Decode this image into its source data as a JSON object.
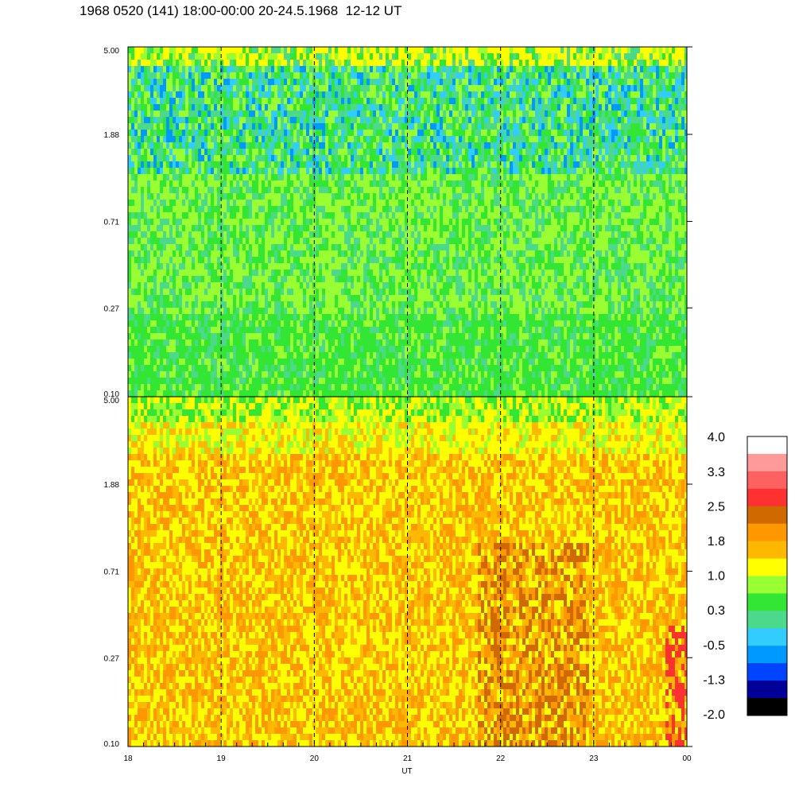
{
  "title": "1968 0520 (141) 18:00-00:00 20-24.5.1968  12-12 UT",
  "chart_data": [
    {
      "type": "heatmap",
      "panel": "top",
      "y_ticks": [
        "5.00",
        "1.88",
        "0.71",
        "0.27",
        "0.10"
      ],
      "y_tick_values": [
        5.0,
        1.88,
        0.71,
        0.27,
        0.1
      ],
      "y_scale": "log",
      "ylim": [
        0.1,
        5.0
      ],
      "x_range_hours": [
        18,
        24
      ],
      "dashed_hour_lines": [
        19,
        20,
        21,
        22,
        23
      ],
      "dominant_levels": "green / cyan / yellow-green (approx -0.5 to 1.0); blue streaks near 1.88 band"
    },
    {
      "type": "heatmap",
      "panel": "bottom",
      "y_ticks": [
        "5.00",
        "1.88",
        "0.71",
        "0.27",
        "0.10"
      ],
      "y_tick_values": [
        5.0,
        1.88,
        0.71,
        0.27,
        0.1
      ],
      "y_scale": "log",
      "ylim": [
        0.1,
        5.0
      ],
      "x_ticks": [
        "18",
        "19",
        "20",
        "21",
        "22",
        "23",
        "00"
      ],
      "xlabel": "UT",
      "x_range_hours": [
        18,
        24
      ],
      "dashed_hour_lines": [
        19,
        20,
        21,
        22,
        23
      ],
      "dominant_levels": "orange / yellow (approx 1.0 to 2.5); green-yellow near top"
    }
  ],
  "colorbar": {
    "labels": [
      "4.0",
      "3.3",
      "2.5",
      "1.8",
      "1.0",
      "0.3",
      "-0.5",
      "-1.3",
      "-2.0"
    ],
    "label_values": [
      4.0,
      3.3,
      2.5,
      1.8,
      1.0,
      0.3,
      -0.5,
      -1.3,
      -2.0
    ],
    "colors_top_to_bottom": [
      "#ffffff",
      "#ff9a9a",
      "#ff6060",
      "#ff3030",
      "#d06a00",
      "#ff9800",
      "#ffb800",
      "#ffff00",
      "#99ff33",
      "#33e633",
      "#4dd98c",
      "#33ccff",
      "#0099ff",
      "#0044ff",
      "#000099",
      "#000000"
    ]
  },
  "palette": {
    "top_base": [
      "#33e633",
      "#4dd98c",
      "#99ff33",
      "#33ccff",
      "#0099ff",
      "#0044ff",
      "#ffff00"
    ],
    "bottom_base": [
      "#ff9800",
      "#ffb800",
      "#ffff00",
      "#d06a00",
      "#99ff33",
      "#33e633"
    ]
  }
}
